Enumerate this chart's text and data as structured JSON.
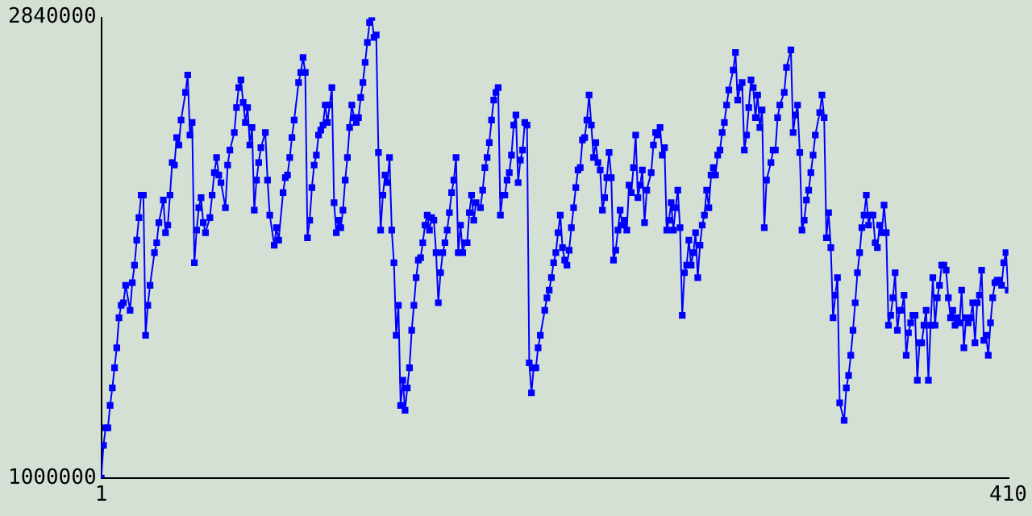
{
  "chart_data": {
    "type": "line",
    "color": "#0000ff",
    "marker": "square",
    "grid": false,
    "xlim": [
      1,
      410
    ],
    "xticks": [
      1,
      410
    ],
    "ylim": [
      1000000,
      2840000
    ],
    "yticks": [
      1000000,
      2840000
    ],
    "x": [
      1,
      2,
      3,
      4,
      5,
      6,
      7,
      8,
      9,
      10,
      11,
      12,
      14,
      15,
      16,
      17,
      18,
      19,
      20,
      21,
      22,
      23,
      25,
      26,
      27,
      29,
      30,
      31,
      32,
      33,
      34,
      35,
      36,
      37,
      39,
      40,
      41,
      42,
      43,
      44,
      45,
      46,
      47,
      48,
      50,
      51,
      52,
      53,
      54,
      55,
      57,
      58,
      59,
      61,
      62,
      63,
      64,
      65,
      66,
      67,
      68,
      69,
      70,
      71,
      72,
      73,
      75,
      76,
      77,
      79,
      80,
      81,
      83,
      84,
      85,
      86,
      87,
      88,
      90,
      91,
      92,
      93,
      94,
      95,
      96,
      97,
      98,
      99,
      100,
      101,
      102,
      103,
      104,
      105,
      106,
      107,
      108,
      109,
      110,
      111,
      112,
      113,
      114,
      115,
      116,
      117,
      118,
      119,
      120,
      121,
      122,
      123,
      124,
      125,
      126,
      127,
      128,
      129,
      130,
      131,
      132,
      133,
      134,
      135,
      136,
      137,
      138,
      139,
      140,
      141,
      142,
      143,
      144,
      145,
      146,
      147,
      148,
      149,
      150,
      151,
      152,
      153,
      154,
      155,
      156,
      157,
      158,
      159,
      160,
      161,
      162,
      163,
      164,
      165,
      166,
      167,
      168,
      169,
      170,
      172,
      173,
      174,
      175,
      176,
      177,
      178,
      179,
      180,
      181,
      182,
      183,
      184,
      185,
      186,
      187,
      188,
      189,
      190,
      191,
      192,
      193,
      194,
      195,
      196,
      197,
      198,
      199,
      201,
      202,
      203,
      204,
      205,
      206,
      207,
      208,
      209,
      210,
      211,
      212,
      213,
      214,
      215,
      216,
      217,
      218,
      219,
      220,
      221,
      222,
      223,
      224,
      225,
      226,
      227,
      228,
      229,
      230,
      231,
      232,
      233,
      234,
      235,
      236,
      237,
      238,
      239,
      240,
      241,
      242,
      243,
      244,
      245,
      246,
      247,
      249,
      250,
      251,
      252,
      253,
      254,
      255,
      256,
      257,
      258,
      259,
      260,
      261,
      262,
      263,
      264,
      265,
      266,
      267,
      268,
      269,
      270,
      271,
      272,
      273,
      274,
      275,
      276,
      277,
      278,
      279,
      280,
      281,
      282,
      283,
      284,
      286,
      287,
      288,
      289,
      290,
      291,
      292,
      293,
      294,
      295,
      296,
      297,
      298,
      299,
      300,
      301,
      303,
      304,
      305,
      306,
      307,
      309,
      310,
      312,
      313,
      314,
      315,
      316,
      317,
      318,
      319,
      320,
      321,
      322,
      323,
      325,
      326,
      327,
      328,
      329,
      330,
      331,
      332,
      333,
      334,
      336,
      337,
      338,
      339,
      340,
      341,
      342,
      343,
      344,
      345,
      346,
      347,
      348,
      349,
      350,
      351,
      352,
      353,
      354,
      355,
      356,
      357,
      358,
      359,
      360,
      361,
      362,
      363,
      364,
      365,
      366,
      367,
      368,
      369,
      370,
      371,
      372,
      373,
      374,
      375,
      376,
      377,
      378,
      379,
      380,
      381,
      382,
      383,
      384,
      385,
      386,
      387,
      388,
      389,
      390,
      391,
      392,
      393,
      394,
      395,
      396,
      397,
      398,
      399,
      400,
      401,
      402,
      403,
      404,
      405,
      406,
      407,
      408,
      409,
      410
    ],
    "values": [
      1000000,
      1130000,
      1200000,
      1200000,
      1290000,
      1360000,
      1440000,
      1520000,
      1640000,
      1690000,
      1700000,
      1770000,
      1670000,
      1780000,
      1850000,
      1950000,
      2040000,
      2130000,
      2130000,
      1570000,
      1690000,
      1770000,
      1900000,
      1940000,
      2020000,
      2110000,
      1980000,
      2010000,
      2130000,
      2260000,
      2250000,
      2360000,
      2330000,
      2430000,
      2540000,
      2610000,
      2370000,
      2420000,
      1860000,
      1990000,
      2080000,
      2120000,
      2020000,
      1980000,
      2040000,
      2130000,
      2220000,
      2280000,
      2210000,
      2180000,
      2080000,
      2250000,
      2310000,
      2380000,
      2480000,
      2560000,
      2590000,
      2500000,
      2420000,
      2480000,
      2330000,
      2400000,
      2070000,
      2190000,
      2260000,
      2320000,
      2380000,
      2190000,
      2050000,
      1930000,
      2000000,
      1950000,
      2140000,
      2200000,
      2210000,
      2280000,
      2360000,
      2430000,
      2580000,
      2620000,
      2680000,
      2620000,
      1960000,
      2030000,
      2160000,
      2250000,
      2290000,
      2370000,
      2390000,
      2410000,
      2490000,
      2420000,
      2490000,
      2560000,
      2100000,
      1980000,
      2030000,
      2000000,
      2070000,
      2190000,
      2280000,
      2400000,
      2490000,
      2440000,
      2420000,
      2440000,
      2520000,
      2580000,
      2660000,
      2740000,
      2820000,
      2840000,
      2760000,
      2770000,
      2300000,
      1990000,
      2130000,
      2210000,
      2180000,
      2280000,
      1990000,
      1860000,
      1570000,
      1690000,
      1290000,
      1390000,
      1270000,
      1360000,
      1440000,
      1590000,
      1690000,
      1800000,
      1870000,
      1880000,
      1940000,
      2010000,
      2050000,
      1990000,
      2040000,
      2030000,
      1900000,
      1700000,
      1820000,
      1900000,
      1940000,
      1990000,
      2060000,
      2140000,
      2190000,
      2280000,
      1900000,
      2010000,
      1900000,
      1940000,
      1940000,
      2060000,
      2130000,
      2030000,
      2100000,
      2080000,
      2150000,
      2240000,
      2280000,
      2340000,
      2430000,
      2510000,
      2540000,
      2560000,
      2050000,
      2130000,
      2130000,
      2190000,
      2220000,
      2290000,
      2410000,
      2450000,
      2180000,
      2270000,
      2310000,
      2420000,
      2410000,
      1460000,
      1340000,
      1440000,
      1440000,
      1520000,
      1570000,
      1670000,
      1720000,
      1750000,
      1800000,
      1860000,
      1900000,
      1980000,
      2050000,
      1920000,
      1870000,
      1850000,
      1910000,
      2000000,
      2080000,
      2160000,
      2230000,
      2240000,
      2350000,
      2360000,
      2430000,
      2530000,
      2410000,
      2280000,
      2340000,
      2260000,
      2230000,
      2070000,
      2120000,
      2200000,
      2300000,
      2200000,
      1870000,
      1910000,
      1990000,
      2070000,
      2010000,
      2030000,
      1990000,
      2170000,
      2140000,
      2240000,
      2370000,
      2120000,
      2170000,
      2230000,
      2020000,
      2150000,
      2220000,
      2330000,
      2380000,
      2370000,
      2400000,
      2290000,
      2320000,
      1990000,
      2030000,
      2100000,
      1990000,
      2080000,
      2150000,
      2000000,
      1650000,
      1820000,
      1850000,
      1950000,
      1850000,
      1900000,
      1980000,
      1800000,
      1930000,
      2010000,
      2050000,
      2150000,
      2080000,
      2210000,
      2240000,
      2210000,
      2290000,
      2310000,
      2380000,
      2420000,
      2490000,
      2550000,
      2630000,
      2700000,
      2510000,
      2560000,
      2580000,
      2310000,
      2370000,
      2480000,
      2590000,
      2560000,
      2440000,
      2530000,
      2400000,
      2470000,
      2000000,
      2190000,
      2260000,
      2310000,
      2310000,
      2440000,
      2490000,
      2540000,
      2640000,
      2710000,
      2380000,
      2450000,
      2490000,
      2300000,
      1990000,
      2030000,
      2110000,
      2150000,
      2220000,
      2290000,
      2370000,
      2460000,
      2530000,
      2440000,
      1960000,
      2060000,
      1920000,
      1640000,
      1730000,
      1800000,
      1300000,
      1230000,
      1360000,
      1410000,
      1490000,
      1590000,
      1700000,
      1820000,
      1900000,
      2000000,
      2050000,
      2130000,
      2010000,
      2050000,
      2050000,
      1940000,
      1920000,
      2010000,
      1980000,
      2090000,
      1980000,
      1610000,
      1650000,
      1720000,
      1820000,
      1590000,
      1670000,
      1670000,
      1730000,
      1490000,
      1580000,
      1620000,
      1650000,
      1650000,
      1390000,
      1540000,
      1540000,
      1610000,
      1670000,
      1390000,
      1610000,
      1800000,
      1610000,
      1720000,
      1770000,
      1850000,
      1850000,
      1830000,
      1720000,
      1640000,
      1670000,
      1610000,
      1640000,
      1620000,
      1750000,
      1520000,
      1640000,
      1620000,
      1640000,
      1700000,
      1540000,
      1700000,
      1730000,
      1830000,
      1550000,
      1570000,
      1490000,
      1620000,
      1720000,
      1780000,
      1790000,
      1790000,
      1770000,
      1860000,
      1900000,
      1750000
    ]
  }
}
